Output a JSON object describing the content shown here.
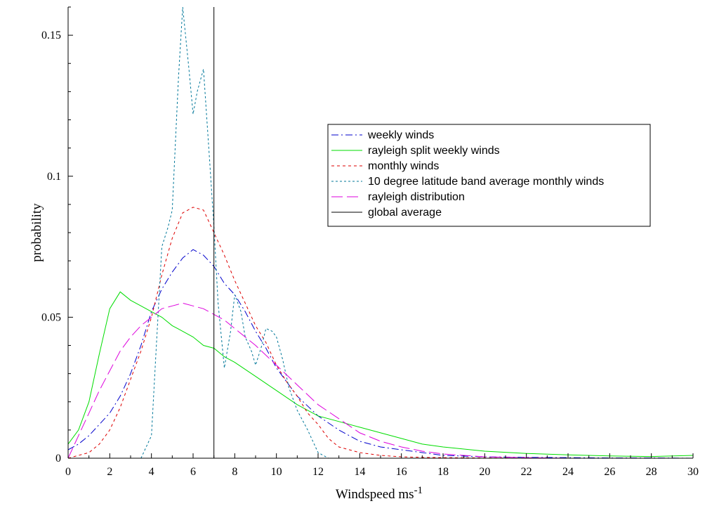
{
  "chart_data": {
    "type": "line",
    "xlabel": "Windspeed ms",
    "xlabel_superscript": "-1",
    "ylabel": "probability",
    "xlim": [
      0,
      30
    ],
    "ylim": [
      0,
      0.16
    ],
    "x_ticks": [
      0,
      2,
      4,
      6,
      8,
      10,
      12,
      14,
      16,
      18,
      20,
      22,
      24,
      26,
      28,
      30
    ],
    "x_minor_step": 1,
    "y_ticks": [
      {
        "value": 0,
        "label": "0"
      },
      {
        "value": 0.05,
        "label": "0.05"
      },
      {
        "value": 0.1,
        "label": "0.1"
      },
      {
        "value": 0.15,
        "label": "0.15"
      }
    ],
    "y_minor_step": 0.01,
    "grid": false,
    "legend_position": "top-right",
    "series": [
      {
        "name": "weekly winds",
        "color": "#0000cc",
        "dash": "10,4,2,4",
        "x": [
          0,
          0.5,
          1,
          1.5,
          2,
          2.5,
          3,
          3.5,
          4,
          4.5,
          5,
          5.5,
          6,
          6.5,
          7,
          7.5,
          8,
          8.5,
          9,
          9.5,
          10,
          11,
          12,
          13,
          14,
          15,
          16,
          17,
          18,
          20,
          22,
          24,
          26,
          28,
          30
        ],
        "y": [
          0.003,
          0.005,
          0.008,
          0.012,
          0.016,
          0.022,
          0.03,
          0.04,
          0.052,
          0.06,
          0.066,
          0.071,
          0.074,
          0.072,
          0.068,
          0.062,
          0.058,
          0.052,
          0.045,
          0.039,
          0.032,
          0.022,
          0.015,
          0.01,
          0.006,
          0.004,
          0.003,
          0.002,
          0.001,
          0.0005,
          0.0003,
          0.0002,
          0.0001,
          0.0001,
          0
        ]
      },
      {
        "name": "rayleigh split weekly winds",
        "color": "#00dd00",
        "dash": "none",
        "x": [
          0,
          0.5,
          1,
          1.5,
          2,
          2.5,
          3,
          3.5,
          4,
          4.5,
          5,
          5.5,
          6,
          6.5,
          7,
          7.5,
          8,
          9,
          10,
          11,
          12,
          13,
          14,
          15,
          16,
          17,
          18,
          20,
          22,
          24,
          26,
          28,
          30
        ],
        "y": [
          0.005,
          0.01,
          0.02,
          0.037,
          0.053,
          0.059,
          0.056,
          0.054,
          0.052,
          0.05,
          0.047,
          0.045,
          0.043,
          0.04,
          0.039,
          0.036,
          0.034,
          0.029,
          0.024,
          0.019,
          0.015,
          0.013,
          0.011,
          0.009,
          0.007,
          0.005,
          0.004,
          0.0025,
          0.0017,
          0.0012,
          0.0008,
          0.0006,
          0.001
        ]
      },
      {
        "name": "monthly winds",
        "color": "#dd0000",
        "dash": "4,4",
        "x": [
          0,
          0.5,
          1,
          1.5,
          2,
          2.5,
          3,
          3.5,
          4,
          4.5,
          5,
          5.5,
          6,
          6.5,
          7,
          7.5,
          8,
          8.5,
          9,
          9.5,
          10,
          10.5,
          11,
          11.5,
          12,
          12.5,
          13,
          14,
          15,
          16,
          17,
          18,
          20,
          22,
          24,
          26,
          28,
          30
        ],
        "y": [
          0,
          0.001,
          0.002,
          0.005,
          0.01,
          0.018,
          0.028,
          0.038,
          0.05,
          0.065,
          0.078,
          0.087,
          0.089,
          0.088,
          0.08,
          0.072,
          0.063,
          0.055,
          0.047,
          0.041,
          0.033,
          0.027,
          0.022,
          0.016,
          0.012,
          0.007,
          0.004,
          0.002,
          0.001,
          0.0005,
          0.0003,
          0.0002,
          0.0001,
          0,
          0,
          0,
          0,
          0
        ]
      },
      {
        "name": "10 degree latitude band average monthly winds",
        "color": "#007799",
        "dash": "3,3",
        "x": [
          3.5,
          4,
          4.2,
          4.5,
          4.8,
          5,
          5.3,
          5.5,
          5.8,
          6,
          6.2,
          6.5,
          6.8,
          7,
          7.2,
          7.5,
          7.8,
          8,
          8.3,
          8.5,
          8.8,
          9,
          9.3,
          9.5,
          9.8,
          10,
          10.3,
          10.6,
          11,
          11.5,
          12,
          12.5
        ],
        "y": [
          0,
          0.008,
          0.035,
          0.075,
          0.082,
          0.088,
          0.135,
          0.16,
          0.138,
          0.122,
          0.13,
          0.138,
          0.105,
          0.082,
          0.055,
          0.032,
          0.045,
          0.058,
          0.052,
          0.043,
          0.038,
          0.033,
          0.04,
          0.046,
          0.045,
          0.043,
          0.035,
          0.025,
          0.017,
          0.01,
          0.002,
          0
        ]
      },
      {
        "name": "rayleigh distribution",
        "color": "#dd00dd",
        "dash": "16,6",
        "x": [
          0,
          0.5,
          1,
          1.5,
          2,
          2.5,
          3,
          3.5,
          4,
          4.5,
          5,
          5.5,
          6,
          6.5,
          7,
          7.5,
          8,
          9,
          10,
          11,
          12,
          13,
          14,
          15,
          16,
          17,
          18,
          20,
          22,
          24
        ],
        "y": [
          0,
          0.008,
          0.016,
          0.024,
          0.031,
          0.038,
          0.043,
          0.047,
          0.05,
          0.053,
          0.054,
          0.055,
          0.054,
          0.053,
          0.051,
          0.049,
          0.046,
          0.04,
          0.033,
          0.026,
          0.019,
          0.014,
          0.009,
          0.006,
          0.004,
          0.0025,
          0.0015,
          0.0005,
          0.0002,
          0
        ]
      },
      {
        "name": "global average",
        "color": "#000000",
        "dash": "none",
        "vertical_x": 7
      }
    ]
  }
}
